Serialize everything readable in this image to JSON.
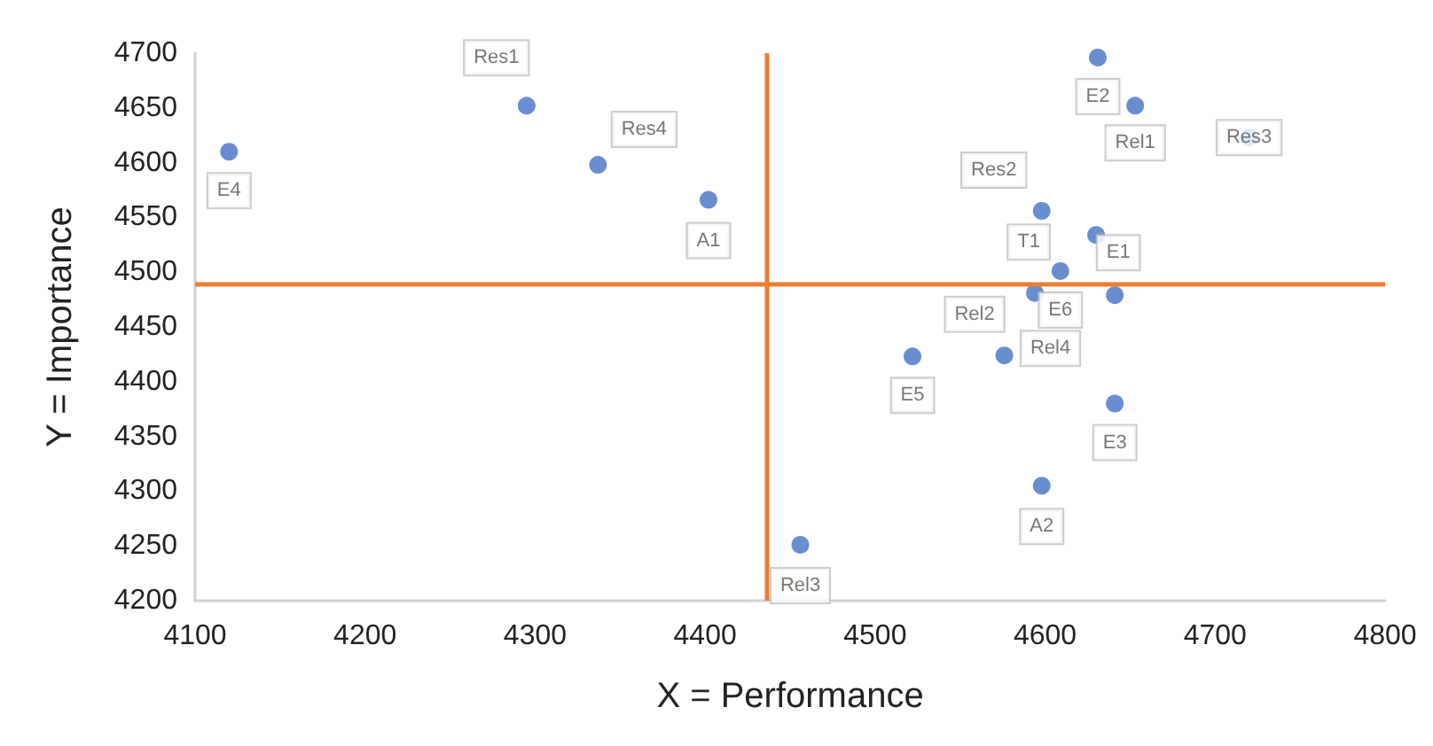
{
  "chart_data": {
    "type": "scatter",
    "xlabel": "X = Performance",
    "ylabel": "Y = Importance",
    "x": [
      4120,
      4295,
      4337,
      4402,
      4456,
      4522,
      4576,
      4641,
      4598,
      4631,
      4653,
      4720,
      4598,
      4630,
      4609,
      4641,
      4594
    ],
    "series": [
      {
        "color": "#4472c4",
        "values": [
          4610,
          4652,
          4598,
          4566,
          4251,
          4423,
          4424,
          4380,
          4305,
          4696,
          4652,
          4623,
          4556,
          4534,
          4501,
          4479,
          4481
        ]
      }
    ],
    "annotations": [
      {
        "text": "E4",
        "x": 4120,
        "y": 4610
      },
      {
        "text": "Res1",
        "x": 4295,
        "y": 4652
      },
      {
        "text": "Res4",
        "x": 4337,
        "y": 4598
      },
      {
        "text": "A1",
        "x": 4402,
        "y": 4566
      },
      {
        "text": "Rel3",
        "x": 4456,
        "y": 4251
      },
      {
        "text": "E5",
        "x": 4522,
        "y": 4423
      },
      {
        "text": "Rel4",
        "x": 4576,
        "y": 4424
      },
      {
        "text": "E3",
        "x": 4641,
        "y": 4380
      },
      {
        "text": "A2",
        "x": 4598,
        "y": 4305
      },
      {
        "text": "E2",
        "x": 4631,
        "y": 4696
      },
      {
        "text": "Rel1",
        "x": 4653,
        "y": 4652
      },
      {
        "text": "Res3",
        "x": 4720,
        "y": 4623
      },
      {
        "text": "Res2",
        "x": 4598,
        "y": 4556
      },
      {
        "text": "T1",
        "x": 4630,
        "y": 4534
      },
      {
        "text": "E6",
        "x": 4609,
        "y": 4501
      },
      {
        "text": "E1",
        "x": 4641,
        "y": 4479
      },
      {
        "text": "Rel2",
        "x": 4594,
        "y": 4481
      }
    ],
    "ref_lines": [
      {
        "axis": "x",
        "value": 4436,
        "color": "#ed7d31"
      },
      {
        "axis": "y",
        "value": 4490,
        "color": "#ed7d31"
      }
    ],
    "xlim": [
      4100,
      4800
    ],
    "xticks": [
      4100,
      4200,
      4300,
      4400,
      4500,
      4600,
      4700,
      4800
    ],
    "ylim": [
      4200,
      4700
    ],
    "yticks": [
      4200,
      4250,
      4300,
      4350,
      4400,
      4450,
      4500,
      4550,
      4600,
      4650,
      4700
    ],
    "grid": false,
    "marker": "circle"
  }
}
